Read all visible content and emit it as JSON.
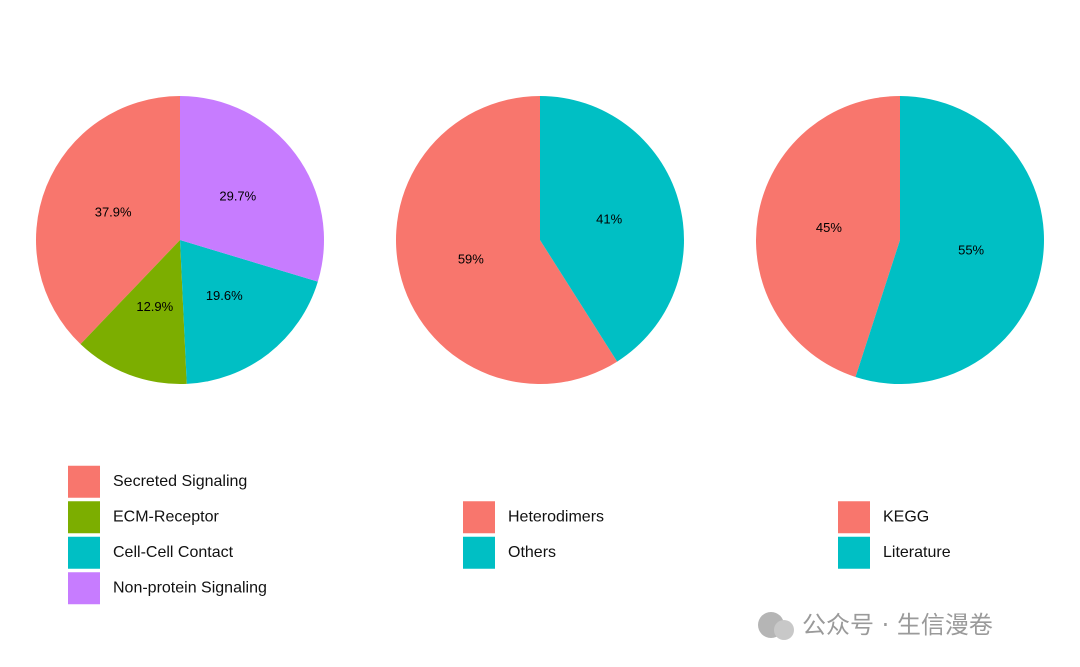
{
  "chart_data": [
    {
      "type": "pie",
      "categories": [
        "Secreted Signaling",
        "ECM-Receptor",
        "Cell-Cell Contact",
        "Non-protein Signaling"
      ],
      "values": [
        37.9,
        12.9,
        19.6,
        29.7
      ],
      "value_labels": [
        "37.9%",
        "12.9%",
        "19.6%",
        "29.7%"
      ],
      "colors": [
        "#F8766D",
        "#7CAE00",
        "#00BFC4",
        "#C77CFF"
      ]
    },
    {
      "type": "pie",
      "categories": [
        "Heterodimers",
        "Others"
      ],
      "values": [
        59,
        41
      ],
      "value_labels": [
        "59%",
        "41%"
      ],
      "colors": [
        "#F8766D",
        "#00BFC4"
      ]
    },
    {
      "type": "pie",
      "categories": [
        "KEGG",
        "Literature"
      ],
      "values": [
        45,
        55
      ],
      "value_labels": [
        "45%",
        "55%"
      ],
      "colors": [
        "#F8766D",
        "#00BFC4"
      ]
    }
  ],
  "watermark": "公众号 · 生信漫卷"
}
